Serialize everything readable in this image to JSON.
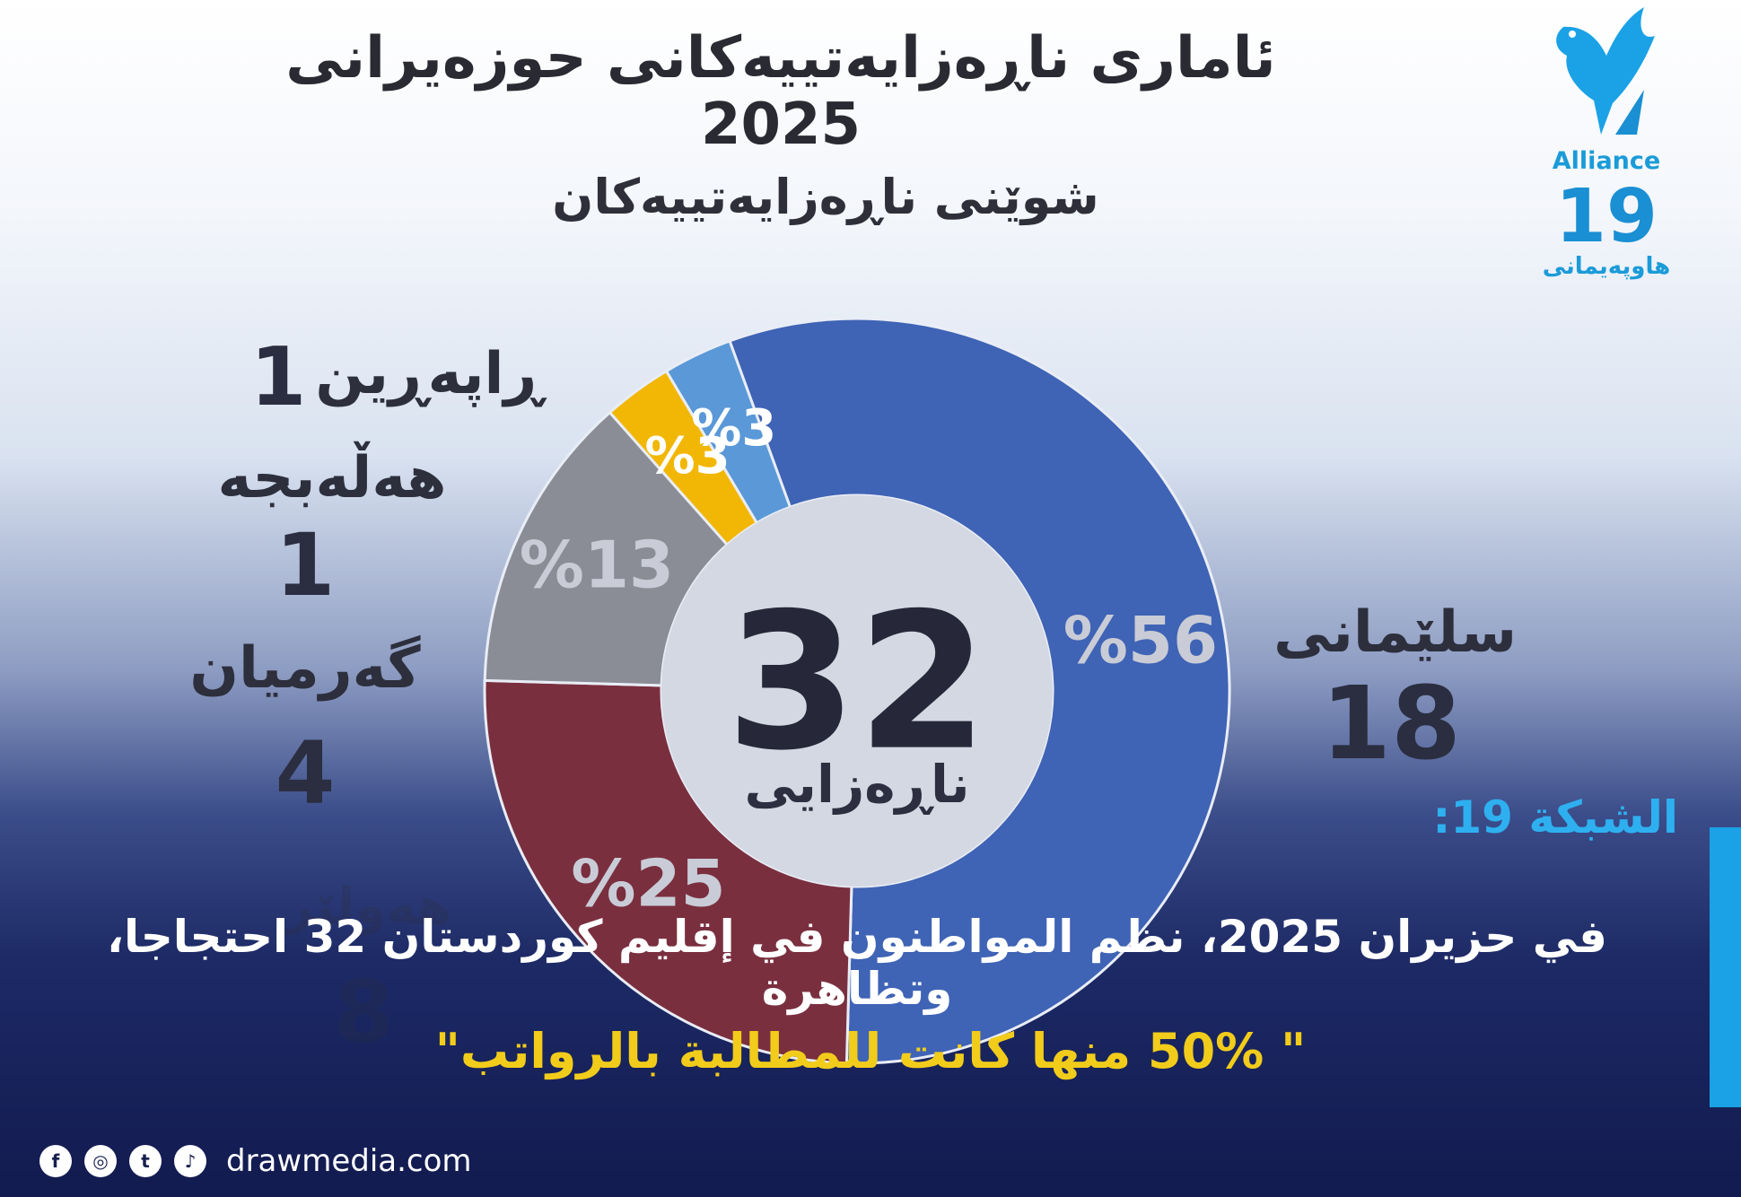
{
  "title": "ئاماری ناڕەزایەتییەکانی حوزەیرانی 2025",
  "subtitle": "شوێنی ناڕەزایەتییەکان",
  "brand": {
    "name": "Alliance",
    "number": "19",
    "subtitle": "هاوپەیمانی",
    "color": "#1a8fd3"
  },
  "chart_data": {
    "type": "pie",
    "style": "donut",
    "total": "32",
    "total_label": "ناڕەزایی",
    "slices": [
      {
        "label": "سلێمانی",
        "count": "18",
        "value": 56,
        "value_label": "%56",
        "color": "#3f63b5"
      },
      {
        "label": "هەولێر",
        "count": "8",
        "value": 25,
        "value_label": "%25",
        "color": "#7a2f3f"
      },
      {
        "label": "گەرمیان",
        "count": "4",
        "value": 13,
        "value_label": "%13",
        "color": "#8a8d96"
      },
      {
        "label": "هەڵەبجە",
        "count": "1",
        "value": 3,
        "value_label": "%3",
        "color": "#f2b705"
      },
      {
        "label": "ڕاپەڕین",
        "count": "1",
        "value": 3,
        "value_label": "%3",
        "color": "#5a98d8"
      }
    ]
  },
  "news": {
    "source_label": "الشبكة 19:",
    "headline": "في حزيران 2025، نظم المواطنون في إقليم كوردستان 32 احتجاجا، وتظاهرة",
    "quote": "\" 50% منها كانت للمطالبة بالرواتب\""
  },
  "footer": {
    "website": "drawmedia.com",
    "social_icons": [
      "facebook-icon",
      "instagram-icon",
      "twitter-icon",
      "tiktok-icon"
    ]
  }
}
